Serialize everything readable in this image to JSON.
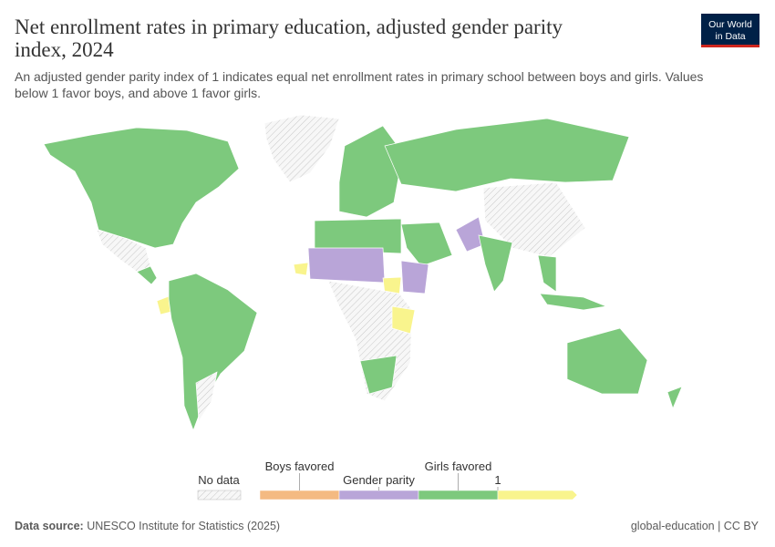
{
  "header": {
    "title_line1": "Net enrollment rates in primary education, adjusted gender parity",
    "title_line2": "index, 2024",
    "subtitle_line1": "An adjusted gender parity index of 1 indicates equal net enrollment rates in primary school between boys and girls. Values",
    "subtitle_line2": "below 1 favor boys, and above 1 favor girls."
  },
  "logo": {
    "line1": "Our World",
    "line2": "in Data"
  },
  "legend": {
    "no_data": "No data",
    "bins": [
      {
        "color": "#f4ba82"
      },
      {
        "color": "#b9a5d8"
      },
      {
        "color": "#7dc97d"
      },
      {
        "color": "#f9f48d"
      }
    ],
    "labels": [
      {
        "text": "Boys favored",
        "row": "top",
        "at": 0.5
      },
      {
        "text": "Gender parity",
        "row": "bottom",
        "at": 1.5
      },
      {
        "text": "Girls favored",
        "row": "top",
        "at": 2.5
      },
      {
        "text": "1",
        "row": "bottom",
        "at": 3
      }
    ]
  },
  "footer": {
    "source_label": "Data source:",
    "source": "UNESCO Institute for Statistics (2025)",
    "right": "global-education | CC BY"
  }
}
